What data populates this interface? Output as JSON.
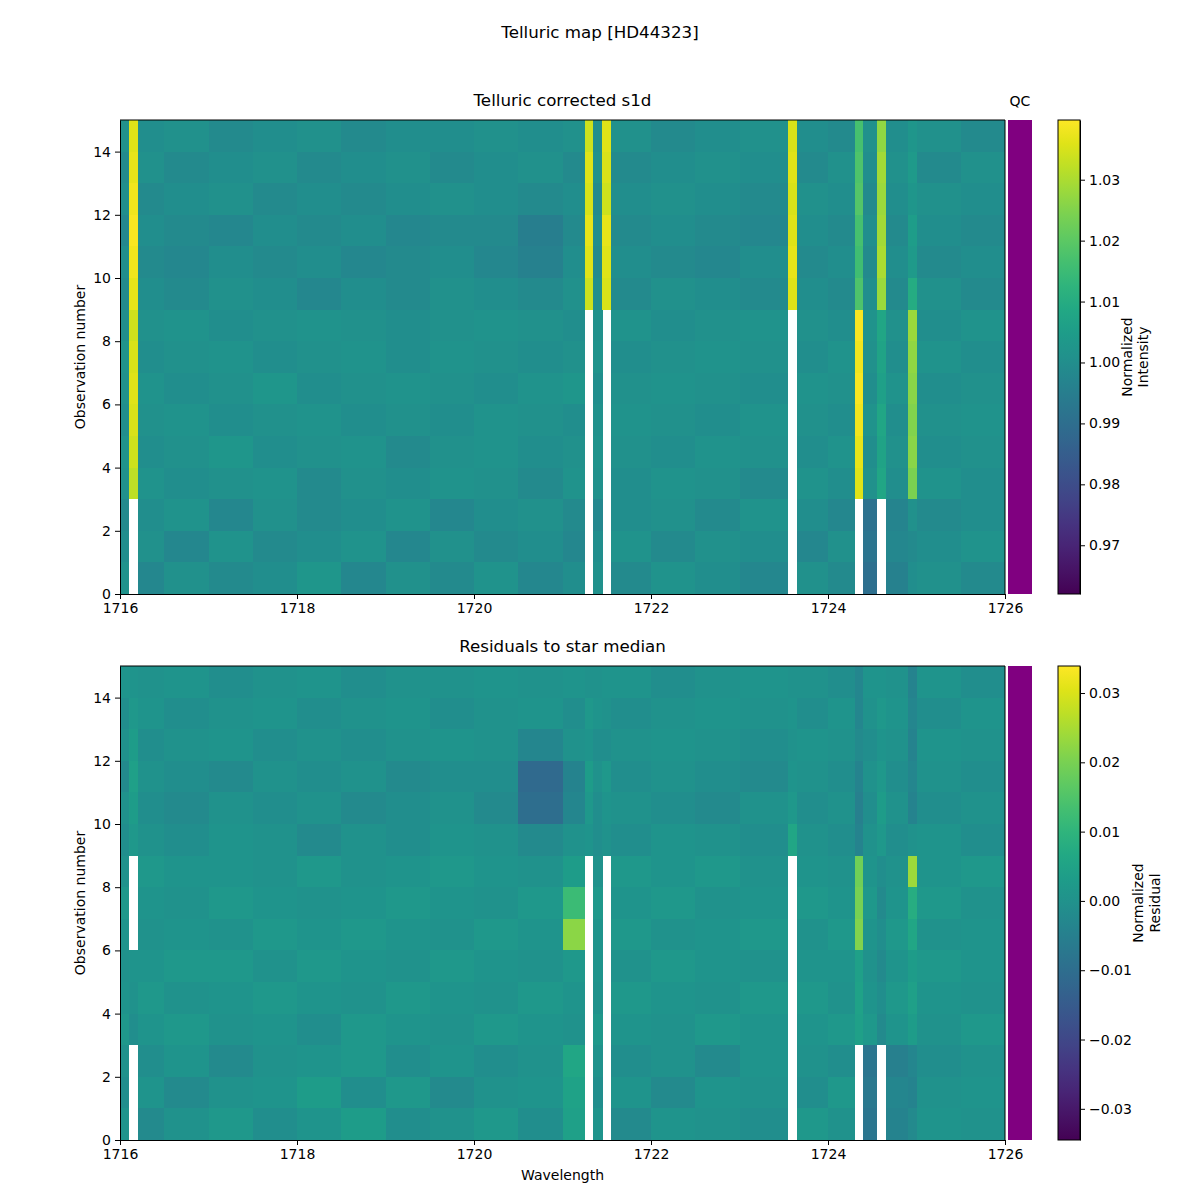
{
  "title": "Telluric map [HD44323]",
  "chart_data": [
    {
      "type": "heatmap",
      "title": "Telluric corrected s1d",
      "ylabel": "Observation number",
      "xlim": [
        1716,
        1726
      ],
      "xticks": [
        1716,
        1718,
        1720,
        1722,
        1724,
        1726
      ],
      "ylim": [
        0,
        15
      ],
      "yticks": [
        0,
        2,
        4,
        6,
        8,
        10,
        12,
        14
      ],
      "x_edges": [
        1716.0,
        1716.1,
        1716.2,
        1716.5,
        1717.0,
        1717.5,
        1718.0,
        1718.5,
        1719.0,
        1719.5,
        1720.0,
        1720.5,
        1721.0,
        1721.25,
        1721.35,
        1721.45,
        1721.55,
        1722.0,
        1722.5,
        1723.0,
        1723.55,
        1723.65,
        1724.0,
        1724.3,
        1724.4,
        1724.55,
        1724.65,
        1724.9,
        1725.0,
        1725.5,
        1726.0
      ],
      "y_edges": [
        0,
        1,
        2,
        3,
        4,
        5,
        6,
        7,
        8,
        9,
        10,
        11,
        12,
        13,
        14,
        15
      ],
      "cells": [
        [
          1.002,
          null,
          0.998,
          1.001,
          0.999,
          1.0,
          1.003,
          0.998,
          1.001,
          0.999,
          1.002,
          0.998,
          1.0,
          null,
          1.001,
          null,
          0.999,
          1.002,
          1.0,
          0.998,
          null,
          1.001,
          0.999,
          null,
          0.99,
          null,
          0.996,
          1.0,
          1.001,
          0.999
        ],
        [
          1.0,
          null,
          1.001,
          0.998,
          1.002,
          0.999,
          1.0,
          1.002,
          0.998,
          1.001,
          0.999,
          1.0,
          0.998,
          null,
          1.0,
          null,
          1.002,
          0.999,
          1.001,
          1.0,
          null,
          0.998,
          1.001,
          null,
          0.992,
          null,
          0.998,
          0.999,
          1.0,
          1.002
        ],
        [
          0.999,
          null,
          1.0,
          1.002,
          0.998,
          1.001,
          0.999,
          1.0,
          1.002,
          0.998,
          1.0,
          1.001,
          0.999,
          null,
          0.998,
          null,
          1.0,
          1.001,
          0.999,
          1.002,
          null,
          1.0,
          0.998,
          null,
          0.991,
          null,
          0.997,
          1.001,
          0.999,
          1.0
        ],
        [
          1.001,
          1.032,
          1.002,
          1.0,
          1.001,
          1.002,
          0.999,
          1.001,
          1.0,
          1.002,
          1.001,
          0.999,
          1.002,
          null,
          1.001,
          null,
          1.0,
          1.002,
          1.001,
          0.999,
          null,
          1.002,
          1.0,
          1.036,
          1.001,
          1.008,
          1.0,
          1.024,
          1.002,
          1.0
        ],
        [
          1.002,
          1.034,
          1.0,
          1.001,
          1.003,
          1.0,
          1.001,
          1.002,
          0.999,
          1.001,
          1.002,
          1.0,
          1.001,
          null,
          1.002,
          null,
          1.001,
          1.0,
          1.002,
          1.001,
          null,
          1.0,
          1.002,
          1.037,
          1.0,
          1.007,
          1.001,
          1.026,
          1.0,
          1.001
        ],
        [
          1.0,
          1.035,
          1.001,
          1.002,
          1.0,
          1.001,
          1.002,
          1.0,
          1.001,
          1.0,
          1.002,
          1.001,
          1.0,
          null,
          1.001,
          null,
          1.002,
          1.001,
          1.0,
          1.002,
          null,
          1.001,
          1.0,
          1.038,
          1.002,
          1.008,
          1.0,
          1.025,
          1.001,
          1.002
        ],
        [
          1.001,
          1.036,
          1.002,
          1.0,
          1.001,
          1.003,
          1.0,
          1.001,
          1.002,
          1.001,
          1.0,
          1.002,
          1.003,
          null,
          1.0,
          null,
          1.001,
          1.002,
          1.001,
          1.0,
          null,
          1.002,
          1.001,
          1.039,
          1.0,
          1.006,
          1.002,
          1.026,
          1.0,
          1.001
        ],
        [
          1.002,
          1.035,
          1.0,
          1.001,
          1.002,
          1.0,
          1.001,
          1.002,
          1.0,
          1.002,
          1.001,
          1.0,
          1.001,
          null,
          1.002,
          null,
          1.0,
          1.001,
          1.002,
          1.001,
          null,
          1.0,
          1.002,
          1.038,
          1.001,
          1.007,
          1.0,
          1.027,
          1.002,
          1.0
        ],
        [
          1.0,
          1.034,
          1.001,
          1.002,
          1.0,
          1.001,
          1.002,
          1.001,
          1.0,
          1.001,
          1.002,
          1.001,
          1.0,
          null,
          1.001,
          null,
          1.002,
          1.0,
          1.001,
          1.002,
          null,
          1.001,
          1.0,
          1.039,
          1.002,
          1.008,
          1.001,
          1.028,
          1.0,
          1.002
        ],
        [
          0.999,
          1.037,
          1.0,
          0.999,
          1.001,
          1.0,
          0.998,
          1.0,
          0.999,
          1.001,
          1.0,
          0.999,
          1.001,
          1.034,
          1.0,
          1.035,
          0.999,
          1.001,
          1.0,
          0.999,
          1.036,
          1.0,
          0.999,
          1.018,
          1.0,
          1.028,
          0.999,
          1.01,
          1.001,
          0.999
        ],
        [
          1.0,
          1.038,
          0.999,
          0.998,
          1.0,
          0.999,
          1.0,
          0.998,
          0.999,
          1.0,
          0.998,
          0.996,
          1.0,
          1.036,
          0.999,
          1.036,
          1.0,
          0.999,
          0.998,
          1.0,
          1.037,
          0.999,
          1.0,
          1.016,
          0.999,
          1.03,
          1.0,
          1.004,
          0.999,
          1.0
        ],
        [
          0.998,
          1.039,
          1.0,
          0.999,
          0.998,
          1.0,
          0.999,
          1.0,
          0.998,
          0.999,
          0.999,
          0.995,
          0.999,
          1.037,
          1.0,
          1.037,
          0.999,
          1.0,
          0.999,
          0.998,
          1.036,
          1.0,
          0.999,
          1.017,
          1.0,
          1.029,
          0.999,
          1.005,
          1.0,
          0.999
        ],
        [
          1.0,
          1.038,
          0.999,
          1.0,
          1.001,
          0.999,
          1.0,
          0.999,
          1.0,
          1.001,
          1.0,
          0.999,
          1.0,
          1.035,
          0.999,
          1.034,
          1.0,
          1.001,
          1.0,
          0.999,
          1.035,
          1.001,
          1.0,
          1.019,
          0.999,
          1.028,
          1.0,
          1.003,
          1.001,
          1.0
        ],
        [
          0.999,
          1.037,
          1.001,
          0.999,
          1.0,
          1.001,
          0.999,
          1.0,
          1.001,
          0.999,
          1.0,
          1.001,
          0.999,
          1.036,
          1.001,
          1.035,
          0.999,
          1.0,
          1.001,
          1.0,
          1.036,
          0.999,
          1.001,
          1.018,
          1.0,
          1.029,
          1.001,
          1.004,
          0.999,
          1.001
        ],
        [
          1.001,
          1.036,
          1.0,
          1.001,
          0.999,
          1.0,
          1.001,
          0.999,
          1.0,
          1.0,
          1.001,
          1.0,
          1.001,
          1.034,
          1.0,
          1.036,
          1.001,
          0.999,
          1.0,
          1.001,
          1.035,
          1.0,
          0.999,
          1.017,
          1.001,
          1.027,
          1.0,
          1.003,
          1.001,
          0.999
        ]
      ],
      "colorbar": {
        "label": "Normalized\nIntensity",
        "lim": [
          0.962,
          1.0398
        ],
        "ticks": [
          0.97,
          0.98,
          0.99,
          {
            "value": 1.0,
            "label": "1.00"
          },
          1.01,
          1.02,
          1.03
        ]
      },
      "qc": {
        "title": "QC",
        "color": "#800080"
      }
    },
    {
      "type": "heatmap",
      "title": "Residuals to star median",
      "xlabel": "Wavelength",
      "ylabel": "Observation number",
      "xlim": [
        1716,
        1726
      ],
      "xticks": [
        1716,
        1718,
        1720,
        1722,
        1724,
        1726
      ],
      "ylim": [
        0,
        15
      ],
      "yticks": [
        0,
        2,
        4,
        6,
        8,
        10,
        12,
        14
      ],
      "x_edges": [
        1716.0,
        1716.1,
        1716.2,
        1716.5,
        1717.0,
        1717.5,
        1718.0,
        1718.5,
        1719.0,
        1719.5,
        1720.0,
        1720.5,
        1721.0,
        1721.25,
        1721.35,
        1721.45,
        1721.55,
        1722.0,
        1722.5,
        1723.0,
        1723.55,
        1723.65,
        1724.0,
        1724.3,
        1724.4,
        1724.55,
        1724.65,
        1724.9,
        1725.0,
        1725.5,
        1726.0
      ],
      "y_edges": [
        0,
        1,
        2,
        3,
        4,
        5,
        6,
        7,
        8,
        9,
        10,
        11,
        12,
        13,
        14,
        15
      ],
      "cells": [
        [
          0.001,
          null,
          -0.002,
          0.0,
          0.002,
          -0.001,
          0.001,
          0.003,
          -0.001,
          0.0,
          0.002,
          -0.001,
          0.004,
          null,
          0.001,
          null,
          -0.002,
          0.001,
          0.0,
          -0.001,
          null,
          0.002,
          0.0,
          null,
          -0.008,
          null,
          -0.004,
          -0.002,
          0.001,
          0.0
        ],
        [
          -0.001,
          null,
          0.001,
          -0.002,
          0.0,
          0.001,
          0.003,
          -0.001,
          0.002,
          -0.002,
          0.0,
          0.001,
          0.005,
          null,
          -0.001,
          null,
          0.001,
          -0.002,
          0.001,
          0.0,
          null,
          -0.001,
          0.002,
          null,
          -0.007,
          null,
          -0.003,
          -0.004,
          0.0,
          0.001
        ],
        [
          0.0,
          null,
          -0.001,
          0.001,
          -0.002,
          0.0,
          0.001,
          0.002,
          -0.001,
          0.001,
          -0.001,
          0.0,
          0.006,
          null,
          0.0,
          null,
          -0.001,
          0.0,
          -0.002,
          0.001,
          null,
          0.0,
          -0.001,
          null,
          -0.008,
          null,
          -0.005,
          -0.003,
          -0.001,
          0.0
        ],
        [
          0.002,
          -0.001,
          0.001,
          0.002,
          0.0,
          0.001,
          -0.001,
          0.002,
          0.001,
          0.0,
          0.002,
          0.001,
          0.0,
          null,
          0.002,
          null,
          0.001,
          0.0,
          0.002,
          0.001,
          null,
          0.001,
          0.002,
          0.004,
          0.002,
          -0.002,
          0.001,
          0.003,
          0.0,
          0.002
        ],
        [
          0.001,
          0.0,
          0.002,
          0.0,
          0.001,
          0.002,
          0.001,
          0.0,
          0.002,
          0.001,
          0.0,
          0.002,
          0.001,
          null,
          0.0,
          null,
          0.002,
          0.001,
          0.0,
          0.002,
          null,
          0.002,
          0.0,
          0.005,
          0.001,
          -0.001,
          0.002,
          0.004,
          0.001,
          0.0
        ],
        [
          0.0,
          0.001,
          0.001,
          0.002,
          0.002,
          0.0,
          0.002,
          0.001,
          0.0,
          0.002,
          0.001,
          0.0,
          0.002,
          null,
          0.001,
          null,
          0.0,
          0.002,
          0.001,
          0.0,
          null,
          0.001,
          0.001,
          0.004,
          0.0,
          -0.002,
          0.001,
          0.003,
          0.002,
          0.001
        ],
        [
          0.001,
          null,
          0.0,
          0.001,
          0.0,
          0.002,
          0.001,
          0.002,
          0.001,
          0.0,
          0.002,
          0.001,
          0.022,
          null,
          0.001,
          null,
          0.002,
          0.0,
          0.001,
          0.002,
          null,
          0.0,
          0.002,
          0.021,
          0.001,
          -0.001,
          0.002,
          0.006,
          0.0,
          0.001
        ],
        [
          0.002,
          null,
          0.001,
          0.0,
          0.002,
          0.001,
          0.0,
          0.001,
          0.002,
          0.001,
          0.0,
          0.002,
          0.012,
          null,
          0.002,
          null,
          0.001,
          0.002,
          0.0,
          0.001,
          null,
          0.002,
          0.001,
          0.02,
          0.002,
          -0.002,
          0.001,
          0.008,
          0.002,
          0.0
        ],
        [
          0.0,
          null,
          0.002,
          0.001,
          0.001,
          0.0,
          0.002,
          0.0,
          0.001,
          0.002,
          0.001,
          0.0,
          0.003,
          null,
          0.0,
          null,
          0.002,
          0.001,
          0.002,
          0.0,
          null,
          0.001,
          0.0,
          0.019,
          0.001,
          -0.001,
          0.0,
          0.024,
          0.001,
          0.002
        ],
        [
          -0.001,
          0.002,
          0.0,
          -0.001,
          0.001,
          0.0,
          -0.002,
          0.0,
          -0.001,
          0.001,
          0.0,
          -0.002,
          0.0,
          0.001,
          -0.001,
          0.0,
          -0.001,
          0.001,
          0.0,
          -0.001,
          0.006,
          0.0,
          -0.001,
          -0.004,
          0.0,
          0.002,
          -0.001,
          0.0,
          0.001,
          -0.001
        ],
        [
          0.0,
          0.003,
          -0.001,
          -0.002,
          0.0,
          -0.001,
          0.0,
          -0.002,
          -0.001,
          0.0,
          -0.002,
          -0.01,
          -0.003,
          0.002,
          -0.001,
          0.001,
          0.0,
          -0.001,
          -0.002,
          0.0,
          0.002,
          -0.001,
          0.0,
          -0.005,
          -0.001,
          0.003,
          0.0,
          -0.004,
          -0.001,
          0.0
        ],
        [
          -0.002,
          0.004,
          0.0,
          -0.001,
          -0.002,
          0.0,
          -0.001,
          0.0,
          -0.002,
          -0.001,
          -0.001,
          -0.011,
          -0.004,
          0.003,
          0.0,
          0.002,
          -0.001,
          0.0,
          -0.001,
          -0.002,
          0.001,
          0.0,
          -0.001,
          -0.004,
          0.0,
          0.002,
          -0.001,
          -0.003,
          0.0,
          -0.001
        ],
        [
          0.0,
          0.003,
          -0.001,
          0.0,
          0.001,
          -0.001,
          0.0,
          -0.001,
          0.0,
          0.001,
          0.0,
          -0.003,
          0.0,
          0.001,
          -0.001,
          -0.001,
          0.0,
          0.001,
          0.0,
          -0.001,
          0.0,
          0.001,
          0.0,
          -0.002,
          -0.001,
          0.001,
          0.0,
          -0.004,
          0.001,
          0.0
        ],
        [
          -0.001,
          0.002,
          0.001,
          -0.001,
          0.0,
          0.001,
          -0.001,
          0.0,
          0.001,
          -0.001,
          0.0,
          0.001,
          -0.001,
          0.002,
          0.001,
          0.0,
          -0.001,
          0.0,
          0.001,
          0.0,
          0.001,
          -0.001,
          0.001,
          -0.003,
          0.0,
          0.002,
          0.001,
          -0.003,
          -0.001,
          0.001
        ],
        [
          0.001,
          0.001,
          0.0,
          0.001,
          -0.001,
          0.0,
          0.001,
          -0.001,
          0.0,
          0.0,
          0.001,
          0.0,
          0.001,
          0.0,
          0.0,
          0.001,
          0.001,
          -0.001,
          0.0,
          0.001,
          0.0,
          0.0,
          -0.001,
          -0.003,
          0.001,
          0.001,
          0.0,
          -0.004,
          0.001,
          -0.001
        ]
      ],
      "colorbar": {
        "label": "Normalized\nResidual",
        "lim": [
          -0.0345,
          0.0339
        ],
        "ticks": [
          {
            "value": -0.03,
            "label": "−0.03"
          },
          {
            "value": -0.02,
            "label": "−0.02"
          },
          {
            "value": -0.01,
            "label": "−0.01"
          },
          {
            "value": 0.0,
            "label": "0.00"
          },
          0.01,
          0.02,
          0.03
        ]
      },
      "qc": {
        "color": "#800080"
      }
    }
  ]
}
